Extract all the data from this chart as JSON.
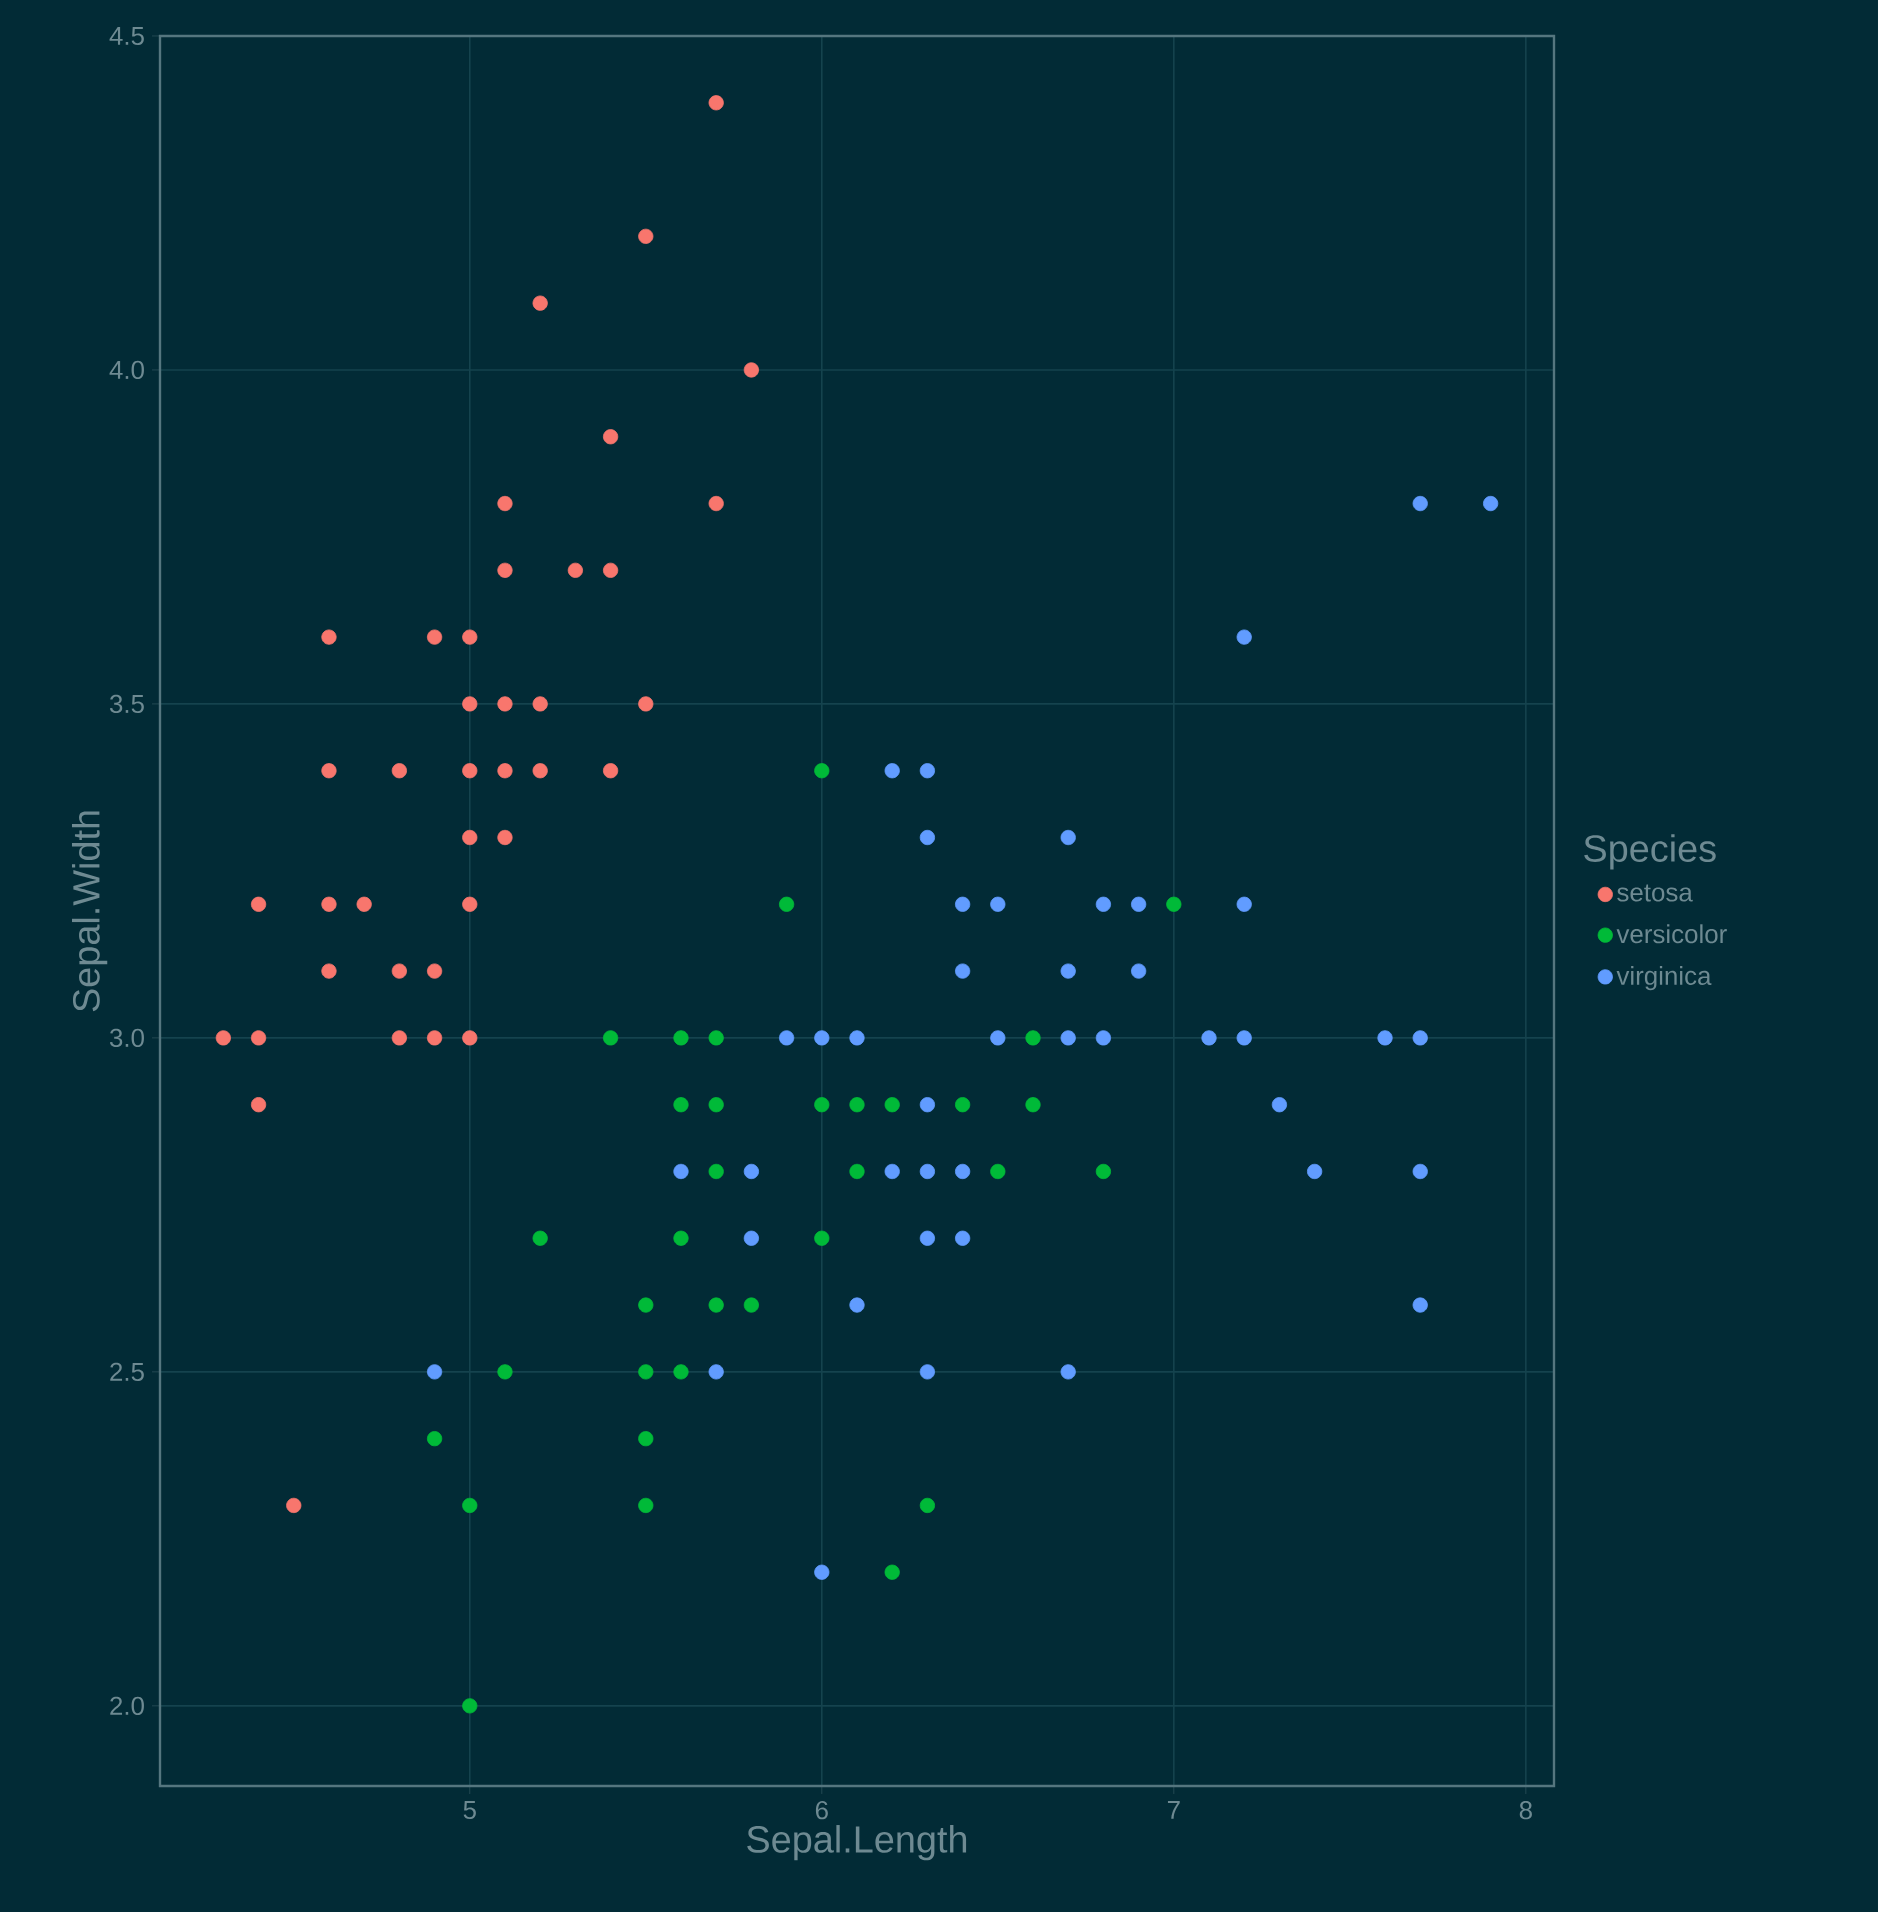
{
  "chart_data": {
    "type": "scatter",
    "xlabel": "Sepal.Length",
    "ylabel": "Sepal.Width",
    "legend_title": "Species",
    "xlim": [
      4.12,
      8.08
    ],
    "ylim": [
      1.88,
      4.5
    ],
    "xticks": [
      5,
      6,
      7,
      8
    ],
    "yticks": [
      {
        "value": 2,
        "label": "2.0"
      },
      2.5,
      {
        "value": 3,
        "label": "3.0"
      },
      3.5,
      {
        "value": 4,
        "label": "4.0"
      },
      4.5
    ],
    "grid": true,
    "legend": "right",
    "marker": "circle",
    "series": [
      {
        "name": "setosa",
        "color": "#f8766d",
        "x": [
          5.1,
          4.9,
          4.7,
          4.6,
          5.0,
          5.4,
          4.6,
          5.0,
          4.4,
          4.9,
          5.4,
          4.8,
          4.8,
          4.3,
          5.8,
          5.7,
          5.7,
          5.1,
          5.4,
          5.1,
          4.6,
          5.1,
          5.0,
          5.2,
          5.2,
          4.8,
          5.2,
          5.5,
          5.0,
          5.5,
          4.9,
          4.4,
          5.1,
          5.0,
          4.5,
          4.4,
          4.6,
          5.3,
          5.0
        ],
        "values": [
          3.5,
          3.0,
          3.2,
          3.1,
          3.6,
          3.9,
          3.4,
          3.4,
          2.9,
          3.1,
          3.7,
          3.4,
          3.0,
          3.0,
          4.0,
          4.4,
          3.8,
          3.8,
          3.4,
          3.7,
          3.6,
          3.3,
          3.0,
          3.5,
          3.4,
          3.1,
          4.1,
          4.2,
          3.2,
          3.5,
          3.6,
          3.0,
          3.4,
          3.5,
          2.3,
          3.2,
          3.2,
          3.7,
          3.3
        ]
      },
      {
        "name": "versicolor",
        "color": "#00ba38",
        "x": [
          7.0,
          5.5,
          6.5,
          5.7,
          4.9,
          6.6,
          5.2,
          5.0,
          6.1,
          5.6,
          5.6,
          6.2,
          5.6,
          5.9,
          6.1,
          6.4,
          6.6,
          6.8,
          6.0,
          5.7,
          5.5,
          6.0,
          5.4,
          6.0,
          6.3,
          5.5,
          5.5,
          5.8,
          5.0,
          5.6,
          5.7,
          5.7,
          6.2,
          5.1
        ],
        "values": [
          3.2,
          2.3,
          2.8,
          2.8,
          2.4,
          2.9,
          2.7,
          2.0,
          2.9,
          2.9,
          3.0,
          2.2,
          2.5,
          3.2,
          2.8,
          2.9,
          3.0,
          2.8,
          2.9,
          2.6,
          2.4,
          2.7,
          3.0,
          3.4,
          2.3,
          2.5,
          2.6,
          2.6,
          2.3,
          2.7,
          3.0,
          2.9,
          2.9,
          2.5
        ]
      },
      {
        "name": "virginica",
        "color": "#619cff",
        "x": [
          6.3,
          5.8,
          7.1,
          6.3,
          6.5,
          7.6,
          4.9,
          7.3,
          6.7,
          7.2,
          6.5,
          6.4,
          6.8,
          5.7,
          5.8,
          6.4,
          7.7,
          7.7,
          6.0,
          6.9,
          5.6,
          7.7,
          6.3,
          6.7,
          7.2,
          6.2,
          6.1,
          6.4,
          7.2,
          7.4,
          7.9,
          6.3,
          6.1,
          7.7,
          6.3,
          6.4,
          6.0,
          6.9,
          6.7,
          6.8,
          6.7,
          6.3,
          6.2,
          5.9
        ],
        "values": [
          3.3,
          2.7,
          3.0,
          2.9,
          3.0,
          3.0,
          2.5,
          2.9,
          2.5,
          3.6,
          3.2,
          2.7,
          3.0,
          2.5,
          2.8,
          3.2,
          3.8,
          2.6,
          2.2,
          3.2,
          2.8,
          2.8,
          2.7,
          3.3,
          3.2,
          2.8,
          3.0,
          2.8,
          3.0,
          2.8,
          3.8,
          2.8,
          2.6,
          3.0,
          3.4,
          3.1,
          3.0,
          3.1,
          3.1,
          3.2,
          3.0,
          2.5,
          3.4,
          3.0
        ]
      }
    ]
  }
}
